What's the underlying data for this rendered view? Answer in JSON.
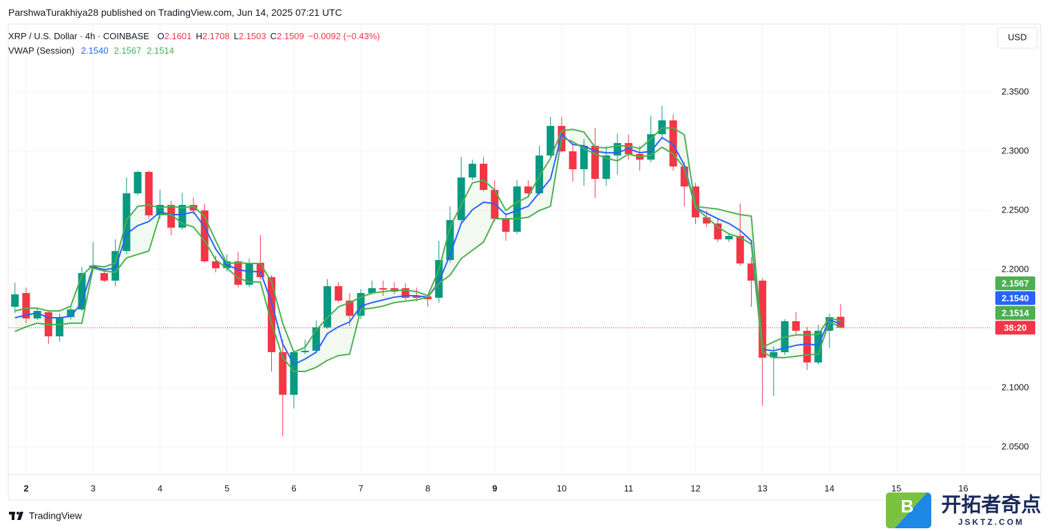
{
  "header": {
    "published": "ParshwaTurakhiya28 published on TradingView.com, Jun 14, 2025 07:21 UTC"
  },
  "footer": {
    "brand": "TradingView",
    "watermark": "开拓者奇点",
    "watermark_site": "JSKTZ.COM",
    "watermark_letter": "B"
  },
  "chart_data": {
    "type": "candlestick",
    "title": "XRP / U.S. Dollar · 4h · COINBASE",
    "ohlc_letters": [
      "O",
      "H",
      "L",
      "C"
    ],
    "change_label": "−0.0092 (−0.43%)",
    "indicator": "VWAP (Session)",
    "currency": "USD",
    "countdown": "38:20",
    "up_color": "#089981",
    "down_color": "#f23645",
    "open": [
      2.1686,
      2.1802,
      2.1587,
      2.164,
      2.1436,
      2.1599,
      2.1663,
      2.2012,
      2.1971,
      2.1907,
      2.2157,
      2.2645,
      2.2826,
      2.2459,
      2.2547,
      2.2355,
      2.2547,
      2.25,
      2.207,
      2.2012,
      2.207,
      2.1872,
      2.2058,
      2.1936,
      2.1302,
      2.0942,
      2.1302,
      2.1314,
      2.1512,
      2.186,
      2.1738,
      2.161,
      2.1802,
      2.1843,
      2.1843,
      2.1843,
      2.1779,
      2.1773,
      2.1762,
      2.2081,
      2.2419,
      2.2779,
      2.2895,
      2.2674,
      2.243,
      2.232,
      2.2703,
      2.2645,
      2.2965,
      2.3215,
      2.3,
      2.2849,
      2.3047,
      2.2767,
      2.2965,
      2.307,
      2.2977,
      2.293,
      2.3145,
      2.3262,
      2.2872,
      2.2703,
      2.2442,
      2.239,
      2.2256,
      2.2285,
      2.2052,
      2.1907,
      2.1256,
      2.1302,
      2.1564,
      2.1483,
      2.1215,
      2.1483,
      2.1601
    ],
    "high": [
      2.189,
      2.1849,
      2.168,
      2.1651,
      2.1628,
      2.1686,
      2.2023,
      2.2233,
      2.2,
      2.2256,
      2.2779,
      2.2837,
      2.2837,
      2.2674,
      2.2581,
      2.2651,
      2.261,
      2.2558,
      2.2116,
      2.2128,
      2.2151,
      2.2093,
      2.2291,
      2.1953,
      2.1407,
      2.1314,
      2.1407,
      2.157,
      2.1919,
      2.1895,
      2.1802,
      2.1837,
      2.1907,
      2.1907,
      2.1895,
      2.1884,
      2.1849,
      2.1791,
      2.2244,
      2.2535,
      2.2953,
      2.293,
      2.2953,
      2.2756,
      2.2477,
      2.2756,
      2.2756,
      2.3047,
      2.3291,
      2.3291,
      2.307,
      2.3105,
      2.3198,
      2.3047,
      2.3151,
      2.314,
      2.3047,
      2.3302,
      2.3384,
      2.3314,
      2.2907,
      2.2733,
      2.25,
      2.243,
      2.2302,
      2.2558,
      2.2105,
      2.193,
      2.1349,
      2.1581,
      2.164,
      2.1512,
      2.1535,
      2.1628,
      2.1708
    ],
    "low": [
      2.1634,
      2.1547,
      2.1576,
      2.1372,
      2.1395,
      2.1576,
      2.1651,
      2.1983,
      2.1895,
      2.186,
      2.2128,
      2.2628,
      2.243,
      2.243,
      2.2291,
      2.2337,
      2.2465,
      2.2058,
      2.1977,
      2.1983,
      2.1849,
      2.1849,
      2.1919,
      2.1139,
      2.0593,
      2.0826,
      2.1285,
      2.1291,
      2.15,
      2.1721,
      2.1523,
      2.1581,
      2.1791,
      2.1779,
      2.1791,
      2.1744,
      2.1733,
      2.1686,
      2.1721,
      2.2058,
      2.2395,
      2.2756,
      2.2663,
      2.2407,
      2.2244,
      2.2302,
      2.2628,
      2.2628,
      2.2953,
      2.2988,
      2.2744,
      2.2709,
      2.2605,
      2.2709,
      2.2802,
      2.293,
      2.2837,
      2.2907,
      2.3116,
      2.2837,
      2.2535,
      2.2384,
      2.236,
      2.2233,
      2.2233,
      2.2035,
      2.1686,
      2.0849,
      2.093,
      2.1279,
      2.1442,
      2.1151,
      2.1198,
      2.1337,
      2.1503
    ],
    "close": [
      2.1791,
      2.1587,
      2.1651,
      2.1436,
      2.1599,
      2.1663,
      2.1971,
      2.2035,
      2.1907,
      2.2157,
      2.2645,
      2.2826,
      2.2459,
      2.2547,
      2.2355,
      2.2547,
      2.25,
      2.207,
      2.2012,
      2.207,
      2.1872,
      2.2058,
      2.1936,
      2.1302,
      2.0942,
      2.1302,
      2.1314,
      2.1512,
      2.186,
      2.1738,
      2.161,
      2.1802,
      2.1843,
      2.1831,
      2.1814,
      2.1762,
      2.1762,
      2.175,
      2.2081,
      2.2419,
      2.2779,
      2.2895,
      2.2674,
      2.243,
      2.232,
      2.2703,
      2.2645,
      2.2965,
      2.3215,
      2.3,
      2.2849,
      2.3047,
      2.2767,
      2.2965,
      2.307,
      2.2977,
      2.293,
      2.3145,
      2.3262,
      2.2872,
      2.2703,
      2.2442,
      2.239,
      2.2256,
      2.2285,
      2.2052,
      2.1907,
      2.1256,
      2.1302,
      2.1564,
      2.1483,
      2.1215,
      2.1483,
      2.1599,
      2.1509
    ],
    "series": [
      {
        "color": "#2962ff",
        "last_label": "2.1540",
        "values": [
          2.1593,
          2.1616,
          2.1634,
          2.1593,
          2.1593,
          2.1605,
          2.1721,
          2.2023,
          2.2,
          2.2012,
          2.2302,
          2.2372,
          2.2407,
          2.2488,
          2.2465,
          2.2465,
          2.2488,
          2.236,
          2.2174,
          2.2041,
          2.2,
          2.1983,
          2.1983,
          2.1721,
          2.1372,
          2.1198,
          2.1244,
          2.1302,
          2.1459,
          2.1517,
          2.1558,
          2.1692,
          2.1721,
          2.1744,
          2.1767,
          2.1779,
          2.1779,
          2.1767,
          2.1895,
          2.2128,
          2.239,
          2.2506,
          2.257,
          2.2558,
          2.2465,
          2.25,
          2.2535,
          2.2651,
          2.2767,
          2.3145,
          2.3058,
          2.3047,
          2.3,
          2.2988,
          2.2988,
          2.3023,
          2.2988,
          2.3,
          2.3116,
          2.3058,
          2.2884,
          2.2523,
          2.2477,
          2.243,
          2.239,
          2.2331,
          2.2244,
          2.1326,
          2.1314,
          2.1337,
          2.136,
          2.1372,
          2.136,
          2.1576,
          2.154
        ]
      },
      {
        "color": "#4caf50",
        "last_label": "2.1567",
        "values": [
          2.1651,
          2.1674,
          2.1674,
          2.1651,
          2.1651,
          2.1692,
          2.1953,
          2.2035,
          2.2023,
          2.2058,
          2.2419,
          2.2535,
          2.2547,
          2.2523,
          2.2535,
          2.2523,
          2.2535,
          2.2448,
          2.2244,
          2.2052,
          2.2058,
          2.2052,
          2.2052,
          2.1895,
          2.1547,
          2.1302,
          2.1343,
          2.1488,
          2.1593,
          2.1686,
          2.1721,
          2.1767,
          2.1802,
          2.1814,
          2.1826,
          2.1826,
          2.1814,
          2.1779,
          2.2,
          2.236,
          2.2547,
          2.2733,
          2.2756,
          2.2674,
          2.25,
          2.257,
          2.2616,
          2.2791,
          2.2942,
          2.3174,
          2.3186,
          2.3163,
          2.3035,
          2.3029,
          2.3047,
          2.3047,
          2.3023,
          2.3105,
          2.3198,
          2.3198,
          2.314,
          2.2535,
          2.2523,
          2.2512,
          2.2488,
          2.2465,
          2.2453,
          2.1343,
          2.139,
          2.143,
          2.1448,
          2.1448,
          2.1453,
          2.1593,
          2.1567
        ]
      },
      {
        "color": "#4caf50",
        "last_label": "2.1514",
        "values": [
          2.1477,
          2.1517,
          2.1547,
          2.1535,
          2.1535,
          2.1547,
          2.1547,
          2.2012,
          2.1988,
          2.1977,
          2.2099,
          2.2128,
          2.2157,
          2.2465,
          2.2465,
          2.239,
          2.236,
          2.2244,
          2.2081,
          2.2012,
          2.193,
          2.1895,
          2.1895,
          2.1547,
          2.1256,
          2.1139,
          2.1139,
          2.1174,
          2.1233,
          2.1273,
          2.1285,
          2.1663,
          2.1674,
          2.1692,
          2.1721,
          2.1733,
          2.1744,
          2.1767,
          2.1884,
          2.1953,
          2.2093,
          2.2163,
          2.2233,
          2.243,
          2.243,
          2.243,
          2.2442,
          2.25,
          2.2535,
          2.3116,
          2.3081,
          2.3023,
          2.2977,
          2.2942,
          2.2919,
          2.2977,
          2.2953,
          2.2965,
          2.3035,
          2.2977,
          2.286,
          2.2523,
          2.2442,
          2.236,
          2.2302,
          2.2273,
          2.2215,
          2.1302,
          2.1256,
          2.1256,
          2.1267,
          2.1279,
          2.1285,
          2.1558,
          2.1514
        ]
      }
    ],
    "band_fill": "#4caf50",
    "xlim": [
      -0.6,
      87.5
    ],
    "xticks": [
      {
        "value": 1,
        "label": "2"
      },
      {
        "value": 7,
        "label": "3"
      },
      {
        "value": 13,
        "label": "4"
      },
      {
        "value": 19,
        "label": "5"
      },
      {
        "value": 25,
        "label": "6"
      },
      {
        "value": 31,
        "label": "7"
      },
      {
        "value": 37,
        "label": "8"
      },
      {
        "value": 43,
        "label": "9"
      },
      {
        "value": 49,
        "label": "10"
      },
      {
        "value": 55,
        "label": "11"
      },
      {
        "value": 61,
        "label": "12"
      },
      {
        "value": 67,
        "label": "13"
      },
      {
        "value": 73,
        "label": "14"
      },
      {
        "value": 79,
        "label": "15"
      },
      {
        "value": 85,
        "label": "16"
      }
    ],
    "ylim": [
      2.0267,
      2.4076
    ],
    "yticks": [
      {
        "value": 2.05,
        "label": "2.0500"
      },
      {
        "value": 2.1,
        "label": "2.1000"
      },
      {
        "value": 2.15,
        "label": "2.1500"
      },
      {
        "value": 2.2,
        "label": "2.2000"
      },
      {
        "value": 2.25,
        "label": "2.2500"
      },
      {
        "value": 2.3,
        "label": "2.3000"
      },
      {
        "value": 2.35,
        "label": "2.3500"
      }
    ],
    "grid": true
  }
}
